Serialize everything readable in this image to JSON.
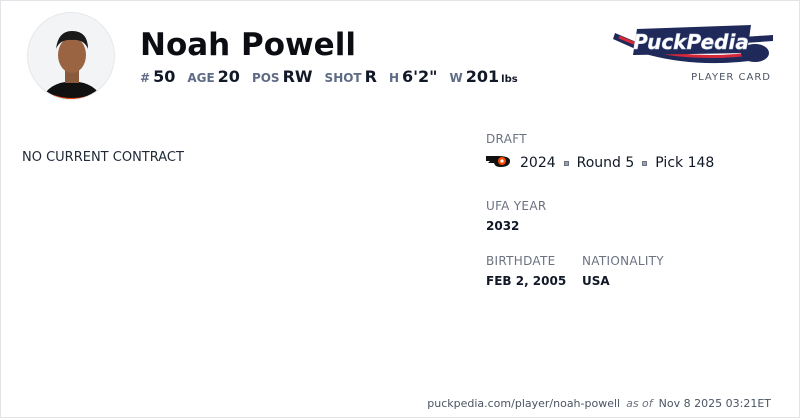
{
  "player": {
    "name": "Noah Powell",
    "stats": [
      {
        "label": "#",
        "value": "50"
      },
      {
        "label": "AGE",
        "value": "20"
      },
      {
        "label": "POS",
        "value": "RW"
      },
      {
        "label": "SHOT",
        "value": "R"
      },
      {
        "label": "H",
        "value": "6'2\""
      },
      {
        "label": "W",
        "value": "201",
        "unit": "lbs"
      }
    ]
  },
  "brand": {
    "logo_text": "PuckPedia",
    "subtitle": "PLAYER CARD"
  },
  "contract": {
    "status": "NO CURRENT CONTRACT"
  },
  "draft": {
    "label": "DRAFT",
    "team_icon": "flyers-logo-icon",
    "year": "2024",
    "round": "Round 5",
    "pick": "Pick 148"
  },
  "ufa": {
    "label": "UFA YEAR",
    "value": "2032"
  },
  "birthdate": {
    "label": "BIRTHDATE",
    "value": "FEB 2, 2005"
  },
  "nationality": {
    "label": "NATIONALITY",
    "value": "USA"
  },
  "footer": {
    "url": "puckpedia.com/player/noah-powell",
    "as_of": "as of",
    "timestamp": "Nov 8 2025 03:21ET"
  }
}
